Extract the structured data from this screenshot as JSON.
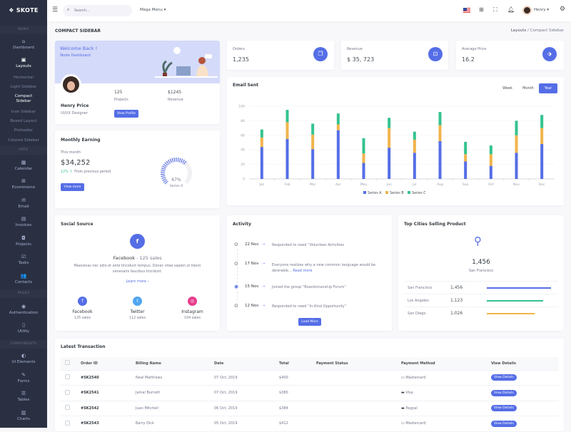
{
  "brand": {
    "name": "SKOTE"
  },
  "sidebar": {
    "sections": {
      "menu": "MENU",
      "apps": "APPS",
      "pages": "PAGES",
      "components": "COMPONENTS"
    },
    "dashboard": "Dashboard",
    "layouts": "Layouts",
    "layout_items": [
      "Horizontal",
      "Light Sidebar",
      "Compact Sidebar",
      "Icon Sidebar",
      "Boxed Layout",
      "Preloader",
      "Colored Sidebar"
    ],
    "apps": [
      "Calendar",
      "Ecommerce",
      "Email",
      "Invoices",
      "Projects",
      "Tasks",
      "Contacts"
    ],
    "pages": [
      "Authentication",
      "Utility"
    ],
    "components": [
      "UI Elements",
      "Forms",
      "Tables",
      "Charts"
    ]
  },
  "header": {
    "search_placeholder": "Search...",
    "mega_menu": "Mega Menu",
    "user": "Henry"
  },
  "page": {
    "title": "COMPACT SIDEBAR",
    "breadcrumb": [
      "Layouts",
      "Compact Sidebar"
    ]
  },
  "welcome": {
    "title": "Welcome Back !",
    "subtitle": "Skote Dashboard",
    "name": "Henry Price",
    "role": "UI/UX Designer",
    "projects_value": "125",
    "projects_label": "Projects",
    "revenue_value": "$1245",
    "revenue_label": "Revenue",
    "button": "View Profile"
  },
  "stats": [
    {
      "label": "Orders",
      "value": "1,235",
      "icon": "copy-icon"
    },
    {
      "label": "Revenue",
      "value": "$ 35, 723",
      "icon": "archive-icon"
    },
    {
      "label": "Average Price",
      "value": "16.2",
      "icon": "tag-icon"
    }
  ],
  "earning": {
    "title": "Monthly Earning",
    "period": "This month",
    "value": "$34,252",
    "change": "12%",
    "change_text": "From previous period",
    "button": "View more",
    "gauge_percent": 67,
    "gauge_label": "67%",
    "gauge_series": "Series A"
  },
  "email": {
    "title": "Email Sent",
    "tabs": [
      "Week",
      "Month",
      "Year"
    ],
    "active_tab": "Year"
  },
  "chart_data": {
    "type": "bar",
    "stacked": true,
    "title": "Email Sent",
    "categories": [
      "Jan",
      "Feb",
      "Mar",
      "Apr",
      "May",
      "Jun",
      "Jul",
      "Aug",
      "Sep",
      "Oct",
      "Nov",
      "Dec"
    ],
    "series": [
      {
        "name": "Series A",
        "color": "#556ee6",
        "values": [
          44,
          55,
          41,
          67,
          22,
          43,
          36,
          52,
          24,
          18,
          36,
          48
        ]
      },
      {
        "name": "Series B",
        "color": "#f1b44c",
        "values": [
          13,
          23,
          20,
          8,
          13,
          27,
          18,
          22,
          10,
          16,
          24,
          22
        ]
      },
      {
        "name": "Series C",
        "color": "#34c38f",
        "values": [
          11,
          17,
          15,
          15,
          21,
          14,
          11,
          18,
          17,
          12,
          20,
          18
        ]
      }
    ],
    "ylim": [
      0,
      100
    ],
    "yticks": [
      0,
      20,
      40,
      60,
      80,
      100
    ],
    "grid": true,
    "legend": "bottom"
  },
  "social": {
    "title": "Social Source",
    "headline": "Facebook",
    "headline_sales": " - 125 sales",
    "text": "Maecenas nec odio et ante tincidunt tempus. Donec vitae sapien ut libero venenatis faucibus tincidunt.",
    "learn": "Learn more",
    "items": [
      {
        "name": "Facebook",
        "sales": "125 sales",
        "color": "#556ee6",
        "glyph": "f"
      },
      {
        "name": "Twitter",
        "sales": "112 sales",
        "color": "#50a5f1",
        "glyph": "t"
      },
      {
        "name": "Instagram",
        "sales": "104 sales",
        "color": "#e83e8c",
        "glyph": "◎"
      }
    ]
  },
  "activity": {
    "title": "Activity",
    "button": "Load More",
    "items": [
      {
        "date": "22 Nov",
        "text": "Responded to need “Volunteer Activities"
      },
      {
        "date": "17 Nov",
        "text": "Everyone realizes why a new common language would be desirable...",
        "link": "Read more"
      },
      {
        "date": "15 Nov",
        "text": "Joined the group “Boardsmanship Forum”"
      },
      {
        "date": "12 Nov",
        "text": "Responded to need “In-Kind Opportunity”"
      }
    ]
  },
  "cities": {
    "title": "Top Cities Selling Product",
    "top_value": "1,456",
    "top_city": "San Francisco",
    "rows": [
      {
        "city": "San Francisco",
        "value": "1,456",
        "percent": 94,
        "color": "#556ee6"
      },
      {
        "city": "Los Angeles",
        "value": "1,123",
        "percent": 82,
        "color": "#34c38f"
      },
      {
        "city": "San Diego",
        "value": "1,026",
        "percent": 70,
        "color": "#f1b44c"
      }
    ]
  },
  "transactions": {
    "title": "Latest Transaction",
    "columns": [
      "Order ID",
      "Billing Name",
      "Date",
      "Total",
      "Payment Status",
      "Payment Method",
      "View Details"
    ],
    "rows": [
      {
        "id": "#SK2540",
        "name": "Neal Matthews",
        "date": "07 Oct, 2019",
        "total": "$400",
        "method": "Mastercard",
        "action": "View Details"
      },
      {
        "id": "#SK2541",
        "name": "Jamal Burnett",
        "date": "07 Oct, 2019",
        "total": "$380",
        "method": "Visa",
        "action": "View Details"
      },
      {
        "id": "#SK2542",
        "name": "Juan Mitchell",
        "date": "06 Oct, 2019",
        "total": "$384",
        "method": "Paypal",
        "action": "View Details"
      },
      {
        "id": "#SK2543",
        "name": "Barry Dick",
        "date": "05 Oct, 2019",
        "total": "$412",
        "method": "Mastercard",
        "action": "View Details"
      }
    ]
  }
}
